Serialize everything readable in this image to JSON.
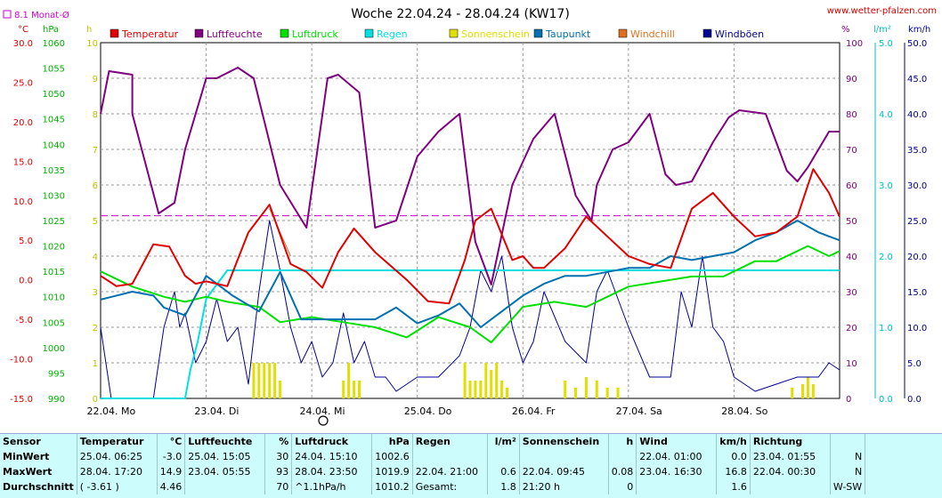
{
  "title": "Woche 22.04.24 - 28.04.24 (KW17)",
  "site": "www.wetter-pfalzen.com",
  "month_avg_label": "8.1 Monat-Ø",
  "unit_labels": {
    "celsius": "°C",
    "hpa": "hPa",
    "hours": "h",
    "percent": "%",
    "rain": "l/m²",
    "kmh": "km/h"
  },
  "colors": {
    "temperatur": "#e00000",
    "luftfeuchte": "#800080",
    "luftdruck": "#00e000",
    "regen": "#00e0e0",
    "sonnenschein": "#e0e000",
    "taupunkt": "#0070b0",
    "windchill": "#e07020",
    "windboeen": "#000090",
    "monat": "#cc00cc"
  },
  "legend": [
    {
      "label": "Temperatur",
      "color": "#e00000"
    },
    {
      "label": "Luftfeuchte",
      "color": "#800080"
    },
    {
      "label": "Luftdruck",
      "color": "#00e000"
    },
    {
      "label": "Regen",
      "color": "#00e0e0"
    },
    {
      "label": "Sonnenschein",
      "color": "#e0e000"
    },
    {
      "label": "Taupunkt",
      "color": "#0070b0"
    },
    {
      "label": "Windchill",
      "color": "#e07020"
    },
    {
      "label": "Windböen",
      "color": "#000090"
    }
  ],
  "chart_data": {
    "type": "line",
    "title": "Woche 22.04.24 - 28.04.24 (KW17)",
    "x_labels": [
      "22.04. Mo",
      "23.04. Di",
      "24.04. Mi",
      "25.04. Do",
      "26.04. Fr",
      "27.04. Sa",
      "28.04. So"
    ],
    "x_range_days": [
      0,
      7
    ],
    "axes": {
      "temperature_c": {
        "ticks": [
          "30.0",
          "25.0",
          "20.0",
          "15.0",
          "10.0",
          "5.0",
          "0.0",
          "-5.0",
          "-10.0",
          "-15.0"
        ],
        "range": [
          -15,
          30
        ]
      },
      "pressure_hpa": {
        "ticks": [
          "1060",
          "1055",
          "1050",
          "1045",
          "1040",
          "1035",
          "1030",
          "1025",
          "1020",
          "1015",
          "1010",
          "1005",
          "1000",
          "995",
          "990"
        ],
        "range": [
          990,
          1060
        ]
      },
      "sunshine_h": {
        "ticks": [
          "10",
          "9",
          "8",
          "7",
          "6",
          "5",
          "4",
          "3",
          "2",
          "1",
          "0"
        ],
        "range": [
          0,
          10
        ]
      },
      "humidity_pct": {
        "ticks": [
          "100",
          "90",
          "80",
          "70",
          "60",
          "50",
          "40",
          "30",
          "20",
          "10",
          "0"
        ],
        "range": [
          0,
          100
        ]
      },
      "rain_lm2": {
        "ticks": [
          "5.0",
          "4.0",
          "3.0",
          "2.0",
          "1.0",
          "0.0"
        ],
        "range": [
          0,
          5
        ]
      },
      "wind_kmh": {
        "ticks": [
          "50.0",
          "45.0",
          "40.0",
          "35.0",
          "30.0",
          "25.0",
          "20.0",
          "15.0",
          "10.0",
          "5.0",
          "0.0"
        ],
        "range": [
          0,
          50
        ]
      }
    },
    "month_average_temp_c": 8.1,
    "series": [
      {
        "name": "Luftfeuchte",
        "axis": "humidity_pct",
        "x": [
          0,
          0.08,
          0.3,
          0.3,
          0.55,
          0.7,
          0.8,
          1.0,
          1.1,
          1.3,
          1.45,
          1.7,
          1.95,
          2.15,
          2.25,
          2.45,
          2.6,
          2.8,
          3.0,
          3.2,
          3.4,
          3.55,
          3.7,
          3.9,
          4.1,
          4.3,
          4.5,
          4.65,
          4.7,
          4.85,
          5.0,
          5.2,
          5.35,
          5.45,
          5.6,
          5.8,
          5.95,
          6.05,
          6.3,
          6.5,
          6.6,
          6.7,
          6.8,
          6.9,
          7.0
        ],
        "y": [
          80,
          92,
          91,
          80,
          52,
          55,
          70,
          90,
          90,
          93,
          90,
          60,
          48,
          90,
          91,
          86,
          48,
          50,
          68,
          75,
          80,
          44,
          32,
          60,
          73,
          80,
          57,
          50,
          60,
          70,
          72,
          80,
          63,
          60,
          61,
          72,
          79,
          81,
          80,
          64,
          61,
          65,
          70,
          75,
          75
        ]
      },
      {
        "name": "Temperatur",
        "axis": "temperature_c",
        "x": [
          0,
          0.15,
          0.3,
          0.5,
          0.65,
          0.8,
          0.9,
          1.0,
          1.2,
          1.4,
          1.6,
          1.8,
          1.95,
          2.1,
          2.25,
          2.4,
          2.6,
          2.9,
          3.1,
          3.3,
          3.45,
          3.55,
          3.7,
          3.9,
          4.0,
          4.1,
          4.2,
          4.4,
          4.6,
          4.8,
          5.0,
          5.2,
          5.4,
          5.6,
          5.8,
          6.0,
          6.2,
          6.4,
          6.6,
          6.75,
          6.9,
          7.0
        ],
        "y": [
          0.5,
          -0.8,
          -0.5,
          4.5,
          4.2,
          0.5,
          -0.5,
          -0.2,
          -0.8,
          6.0,
          9.5,
          2.0,
          1.0,
          -1.0,
          3.5,
          6.5,
          3.5,
          0.0,
          -2.7,
          -3.0,
          2.5,
          7.5,
          9.0,
          2.5,
          3.0,
          1.5,
          1.5,
          4.0,
          8.0,
          5.5,
          3.0,
          2.0,
          1.5,
          9.0,
          11.0,
          8.0,
          5.5,
          6.0,
          8.0,
          14.0,
          11.0,
          8.0
        ]
      },
      {
        "name": "Windchill",
        "axis": "temperature_c",
        "x": [
          1.6,
          1.7,
          1.8
        ],
        "y": [
          9.0,
          6.0,
          3.0
        ]
      },
      {
        "name": "Taupunkt",
        "axis": "temperature_c",
        "x": [
          0,
          0.3,
          0.5,
          0.6,
          0.8,
          1.0,
          1.25,
          1.5,
          1.7,
          1.9,
          2.1,
          2.4,
          2.6,
          2.8,
          3.0,
          3.2,
          3.4,
          3.6,
          3.8,
          4.0,
          4.2,
          4.4,
          4.6,
          4.8,
          5.0,
          5.2,
          5.4,
          5.6,
          5.8,
          6.0,
          6.2,
          6.4,
          6.6,
          6.8,
          6.9,
          7.0
        ],
        "y": [
          -2.5,
          -1.5,
          -2.0,
          -3.5,
          -4.5,
          0.5,
          -2.0,
          -4.0,
          1.0,
          -5.0,
          -5.0,
          -5.0,
          -5.0,
          -3.5,
          -5.5,
          -4.5,
          -3.0,
          -6.0,
          -4.0,
          -2.0,
          -0.5,
          0.5,
          0.5,
          1.0,
          1.5,
          1.5,
          3.0,
          2.5,
          3.0,
          3.5,
          5.0,
          6.0,
          7.5,
          6.0,
          5.5,
          5.0
        ]
      },
      {
        "name": "Luftdruck",
        "axis": "pressure_hpa",
        "x": [
          0,
          0.3,
          0.6,
          0.8,
          1.0,
          1.2,
          1.5,
          1.7,
          2.0,
          2.3,
          2.6,
          2.9,
          3.2,
          3.5,
          3.7,
          4.0,
          4.3,
          4.6,
          5.0,
          5.3,
          5.6,
          5.9,
          6.2,
          6.4,
          6.7,
          6.9,
          7.0
        ],
        "y": [
          1015,
          1012,
          1010,
          1009,
          1010,
          1009,
          1008,
          1005,
          1006,
          1005,
          1004,
          1002,
          1006,
          1004,
          1001,
          1008,
          1009,
          1008,
          1012,
          1013,
          1014,
          1014,
          1017,
          1017,
          1020,
          1018,
          1019
        ]
      },
      {
        "name": "Regen",
        "axis": "rain_lm2",
        "x": [
          0,
          0.8,
          0.85,
          0.92,
          1.0,
          1.2,
          1.25,
          7.0
        ],
        "y": [
          0,
          0,
          0.4,
          0.8,
          1.4,
          1.8,
          1.8,
          1.8
        ]
      },
      {
        "name": "Sonnenschein",
        "axis": "sunshine_h",
        "x": [
          1.45,
          1.5,
          1.55,
          1.6,
          1.65,
          1.7,
          2.3,
          2.35,
          2.4,
          2.45,
          3.45,
          3.5,
          3.55,
          3.6,
          3.65,
          3.7,
          3.75,
          3.8,
          3.85,
          4.4,
          4.5,
          4.6,
          4.7,
          4.8,
          4.9,
          6.55,
          6.65,
          6.7,
          6.75
        ],
        "y": [
          1,
          1,
          1,
          1,
          1,
          0.5,
          0.5,
          1,
          0.5,
          0.5,
          1,
          0.5,
          0.5,
          0.5,
          1,
          0.8,
          1,
          0.5,
          0.3,
          0.5,
          0.3,
          0.6,
          0.5,
          0.3,
          0.3,
          0.3,
          0.4,
          0.6,
          0.4
        ]
      },
      {
        "name": "Windböen",
        "axis": "wind_kmh",
        "x": [
          0,
          0.05,
          0.1,
          0.3,
          0.5,
          0.6,
          0.7,
          0.75,
          0.8,
          0.9,
          1.0,
          1.1,
          1.2,
          1.3,
          1.4,
          1.5,
          1.6,
          1.7,
          1.8,
          1.9,
          2.0,
          2.1,
          2.2,
          2.3,
          2.4,
          2.5,
          2.6,
          2.7,
          2.8,
          3.0,
          3.2,
          3.4,
          3.5,
          3.6,
          3.7,
          3.8,
          3.9,
          4.0,
          4.1,
          4.2,
          4.4,
          4.6,
          4.7,
          4.8,
          5.0,
          5.2,
          5.4,
          5.5,
          5.6,
          5.7,
          5.8,
          5.9,
          6.0,
          6.2,
          6.4,
          6.6,
          6.8,
          6.9,
          7.0
        ],
        "y": [
          10,
          5,
          0,
          0,
          0,
          10,
          15,
          10,
          12,
          5,
          8,
          14,
          8,
          10,
          2,
          15,
          25,
          18,
          10,
          5,
          8,
          3,
          5,
          12,
          5,
          8,
          3,
          3,
          1,
          3,
          3,
          6,
          10,
          18,
          15,
          20,
          10,
          5,
          8,
          15,
          8,
          5,
          15,
          18,
          10,
          3,
          3,
          15,
          10,
          20,
          10,
          8,
          3,
          1,
          2,
          3,
          3,
          5,
          4
        ]
      }
    ]
  },
  "stats": {
    "headers": [
      {
        "label": "Sensor",
        "unit": ""
      },
      {
        "label": "Temperatur",
        "unit": "°C"
      },
      {
        "label": "Luftfeuchte",
        "unit": "%"
      },
      {
        "label": "Luftdruck",
        "unit": "hPa"
      },
      {
        "label": "Regen",
        "unit": "l/m²"
      },
      {
        "label": "Sonnenschein",
        "unit": "h"
      },
      {
        "label": "Wind",
        "unit": "km/h"
      },
      {
        "label": "Richtung",
        "unit": ""
      }
    ],
    "rows": [
      {
        "label": "MinWert",
        "cells": [
          [
            "25.04.  06:25",
            "-3.0"
          ],
          [
            "25.04.  15:05",
            "30"
          ],
          [
            "24.04.  15:10",
            "1002.6"
          ],
          [
            "",
            ""
          ],
          [
            "",
            ""
          ],
          [
            "22.04.  01:00",
            "0.0"
          ],
          [
            "23.04.  01:55",
            "N"
          ]
        ]
      },
      {
        "label": "MaxWert",
        "cells": [
          [
            "28.04.  17:20",
            "14.9"
          ],
          [
            "23.04.  05:55",
            "93"
          ],
          [
            "28.04.  23:50",
            "1019.9"
          ],
          [
            "22.04.  21:00",
            "0.6"
          ],
          [
            "22.04.  09:45",
            "0.08"
          ],
          [
            "23.04.  16:30",
            "16.8"
          ],
          [
            "22.04.  00:30",
            "N"
          ]
        ]
      },
      {
        "label": "Durchschnitt",
        "cells": [
          [
            "( -3.61 )",
            "4.46"
          ],
          [
            "",
            "70"
          ],
          [
            "^1.1hPa/h",
            "1010.2"
          ],
          [
            "Gesamt:",
            "1.8"
          ],
          [
            "21:20 h",
            "0"
          ],
          [
            "",
            "1.6"
          ],
          [
            "",
            "W-SW"
          ]
        ]
      }
    ]
  }
}
